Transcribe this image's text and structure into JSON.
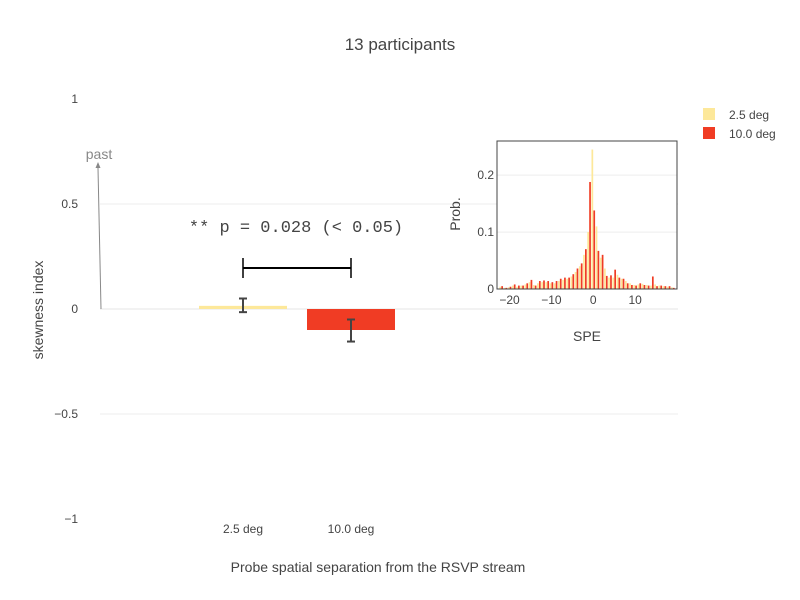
{
  "chart_data": [
    {
      "type": "bar",
      "title": "13 participants",
      "xlabel": "Probe spatial separation from the RSVP stream",
      "ylabel": "skewness index",
      "ylim": [
        -1,
        1
      ],
      "yticks": [
        1,
        0.5,
        0,
        -0.5,
        -1
      ],
      "ytick_labels": [
        "1",
        "0.5",
        "0",
        "−0.5",
        "−1"
      ],
      "categories": [
        "2.5 deg",
        "10.0 deg"
      ],
      "values": [
        0.015,
        -0.1
      ],
      "error_low": [
        -0.015,
        -0.155
      ],
      "error_high": [
        0.05,
        -0.05
      ],
      "colors": [
        "#fde89a",
        "#f03c24"
      ],
      "grid": true,
      "legend": {
        "position": "top-right",
        "entries": [
          "2.5 deg",
          "10.0 deg"
        ]
      },
      "annotations": {
        "significance": "** p = 0.028  (< 0.05)",
        "arrow_label": "past"
      }
    },
    {
      "type": "bar",
      "inset": true,
      "xlabel": "SPE",
      "ylabel": "Prob.",
      "xlim": [
        -23,
        20
      ],
      "ylim": [
        0,
        0.26
      ],
      "xticks": [
        -20,
        -10,
        0,
        10
      ],
      "xtick_labels": [
        "−20",
        "−10",
        "0",
        "10"
      ],
      "yticks": [
        0,
        0.1,
        0.2
      ],
      "ytick_labels": [
        "0",
        "0.1",
        "0.2"
      ],
      "series": [
        {
          "name": "2.5 deg",
          "x": [
            -22,
            -21,
            -20,
            -19,
            -18,
            -17,
            -16,
            -15,
            -14,
            -13,
            -12,
            -11,
            -10,
            -9,
            -8,
            -7,
            -6,
            -5,
            -4,
            -3,
            -2,
            -1,
            0,
            1,
            2,
            3,
            4,
            5,
            6,
            7,
            8,
            9,
            10,
            11,
            12,
            13,
            14,
            15,
            16,
            17,
            18,
            19
          ],
          "values": [
            0.004,
            0.002,
            0.003,
            0.006,
            0.004,
            0.006,
            0.008,
            0.012,
            0.007,
            0.01,
            0.012,
            0.012,
            0.01,
            0.01,
            0.014,
            0.016,
            0.018,
            0.022,
            0.03,
            0.04,
            0.06,
            0.1,
            0.245,
            0.11,
            0.055,
            0.036,
            0.02,
            0.02,
            0.025,
            0.018,
            0.014,
            0.01,
            0.007,
            0.008,
            0.009,
            0.007,
            0.006,
            0.008,
            0.006,
            0.005,
            0.004,
            0.003
          ]
        },
        {
          "name": "10.0 deg",
          "x": [
            -22,
            -21,
            -20,
            -19,
            -18,
            -17,
            -16,
            -15,
            -14,
            -13,
            -12,
            -11,
            -10,
            -9,
            -8,
            -7,
            -6,
            -5,
            -4,
            -3,
            -2,
            -1,
            0,
            1,
            2,
            3,
            4,
            5,
            6,
            7,
            8,
            9,
            10,
            11,
            12,
            13,
            14,
            15,
            16,
            17,
            18,
            19
          ],
          "values": [
            0.005,
            0.002,
            0.004,
            0.008,
            0.006,
            0.006,
            0.01,
            0.016,
            0.006,
            0.014,
            0.015,
            0.014,
            0.012,
            0.014,
            0.018,
            0.02,
            0.02,
            0.026,
            0.036,
            0.045,
            0.07,
            0.188,
            0.138,
            0.067,
            0.06,
            0.023,
            0.024,
            0.034,
            0.02,
            0.018,
            0.01,
            0.007,
            0.006,
            0.01,
            0.007,
            0.006,
            0.022,
            0.005,
            0.006,
            0.005,
            0.005,
            0.002
          ]
        }
      ]
    }
  ]
}
